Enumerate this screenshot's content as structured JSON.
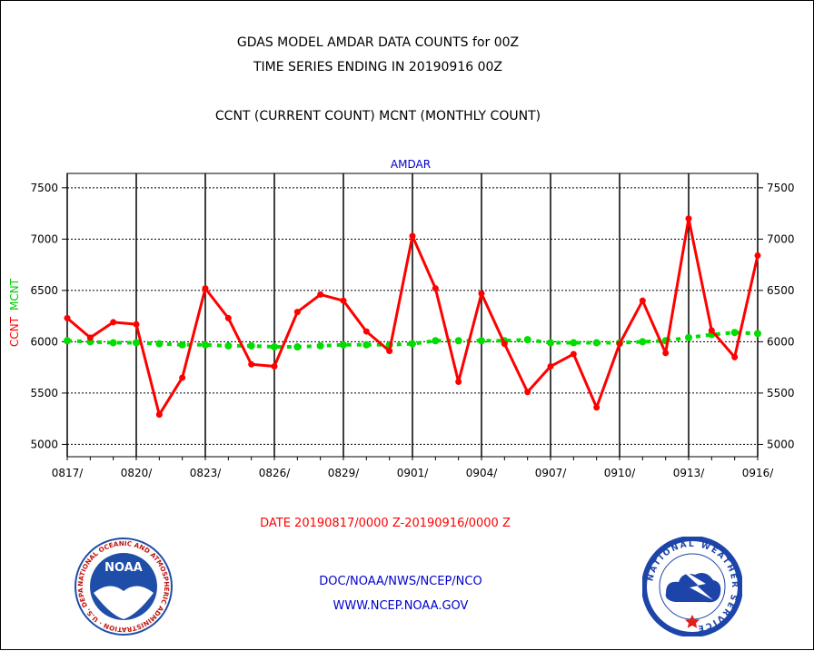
{
  "header": {
    "title": "GDAS MODEL AMDAR DATA COUNTS for 00Z",
    "subtitle": "TIME SERIES ENDING IN 20190916 00Z",
    "counts_legend": "CCNT (CURRENT COUNT) MCNT (MONTHLY COUNT)"
  },
  "footer": {
    "date_range": "DATE 20190817/0000 Z-20190916/0000 Z",
    "org": "DOC/NOAA/NWS/NCEP/NCO",
    "url": "WWW.NCEP.NOAA.GOV"
  },
  "logos": {
    "noaa": {
      "center_text": "NOAA",
      "ring_text": "NATIONAL OCEANIC AND ATMOSPHERIC ADMINISTRATION · U.S. DEPARTMENT OF COMMERCE ·",
      "colors": {
        "ring": "#ffffff",
        "center": "#1f4ea8",
        "text": "#c0140c"
      }
    },
    "nws": {
      "ring_text": "NATIONAL WEATHER SERVICE",
      "colors": {
        "ring": "#1d44a8",
        "center": "#ffffff",
        "cloud": "#1d44a8",
        "star": "#e0201a"
      }
    }
  },
  "chart_data": {
    "type": "line",
    "title": "AMDAR",
    "ylabel_parts": [
      {
        "text": "CCNT",
        "color": "#ff0000"
      },
      {
        "text": "MCNT",
        "color": "#00cc00"
      }
    ],
    "xlabel": "",
    "ylim": [
      4880,
      7640
    ],
    "yticks": [
      5000,
      5500,
      6000,
      6500,
      7000,
      7500
    ],
    "ytick_labels": [
      "5000",
      "5500",
      "6000",
      "6500",
      "7000",
      "7500"
    ],
    "xlim": [
      0,
      30
    ],
    "xticks": [
      0,
      3,
      6,
      9,
      12,
      15,
      18,
      21,
      24,
      27,
      30
    ],
    "xtick_labels": [
      "0817/",
      "0820/",
      "0823/",
      "0826/",
      "0829/",
      "0901/",
      "0904/",
      "0907/",
      "0910/",
      "0913/",
      "0916/"
    ],
    "grid": true,
    "series": [
      {
        "name": "CCNT",
        "color": "#ff0000",
        "style": "solid",
        "x": [
          0,
          1,
          2,
          3,
          4,
          5,
          6,
          7,
          8,
          9,
          10,
          11,
          12,
          13,
          14,
          15,
          16,
          17,
          18,
          19,
          20,
          21,
          22,
          23,
          24,
          25,
          26,
          27,
          28,
          29,
          30
        ],
        "values": [
          6230,
          6040,
          6190,
          6170,
          5290,
          5650,
          6520,
          6230,
          5780,
          5760,
          6290,
          6460,
          6400,
          6100,
          5910,
          7030,
          6520,
          5610,
          6470,
          5980,
          5510,
          5760,
          5880,
          5360,
          5980,
          6400,
          5890,
          7200,
          6110,
          5850,
          6840
        ]
      },
      {
        "name": "MCNT",
        "color": "#00dd00",
        "style": "dashed",
        "x": [
          0,
          1,
          2,
          3,
          4,
          5,
          6,
          7,
          8,
          9,
          10,
          11,
          12,
          13,
          14,
          15,
          16,
          17,
          18,
          19,
          20,
          21,
          22,
          23,
          24,
          25,
          26,
          27,
          28,
          29,
          30
        ],
        "values": [
          6010,
          6000,
          5990,
          5990,
          5980,
          5970,
          5970,
          5960,
          5960,
          5950,
          5950,
          5960,
          5970,
          5970,
          5970,
          5980,
          6010,
          6010,
          6010,
          6010,
          6020,
          5990,
          5990,
          5990,
          5990,
          6000,
          6010,
          6040,
          6070,
          6090,
          6080
        ]
      }
    ]
  }
}
